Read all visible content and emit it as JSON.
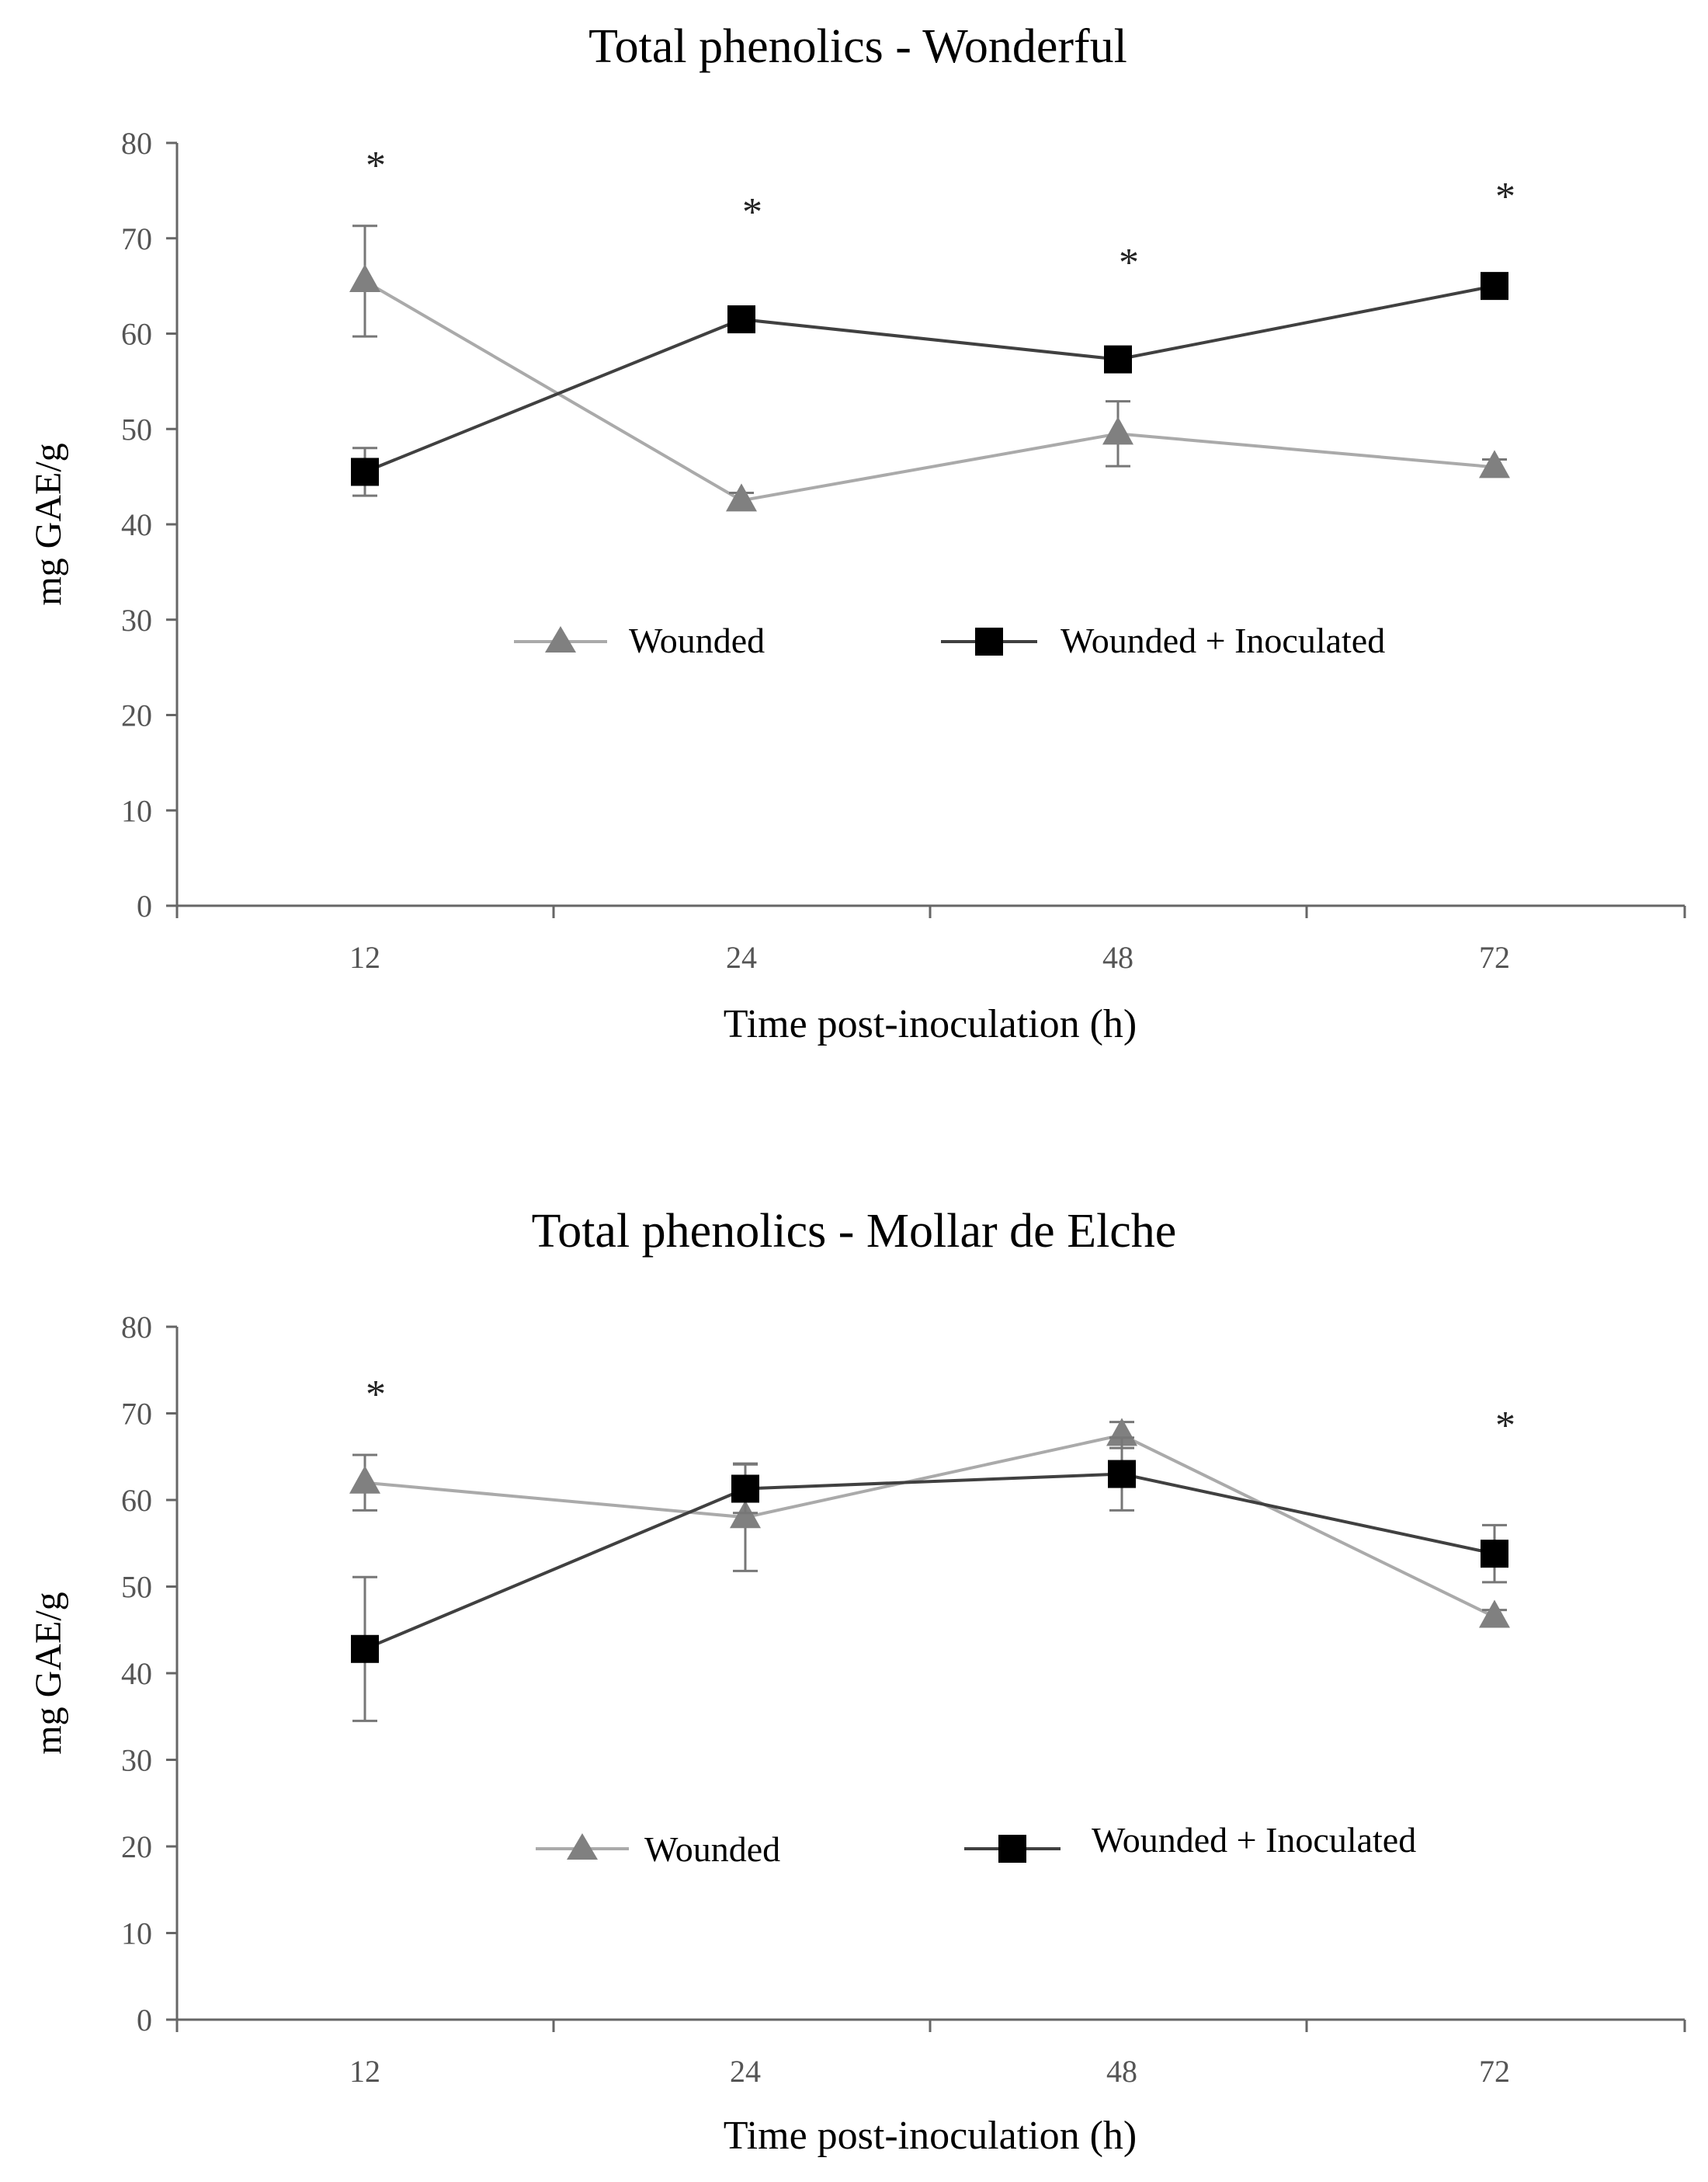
{
  "chart_data": [
    {
      "type": "line",
      "title": "Total phenolics - Wonderful",
      "xlabel": "Time post-inoculation (h)",
      "ylabel": "mg GAE/g",
      "categories": [
        "12",
        "24",
        "48",
        "72"
      ],
      "ylim": [
        0,
        80
      ],
      "yticks": [
        "0",
        "10",
        "20",
        "30",
        "40",
        "50",
        "60",
        "70",
        "80"
      ],
      "legend_position": "center",
      "significance": [
        "*",
        "*",
        "*",
        "*"
      ],
      "series": [
        {
          "name": "Wounded",
          "marker": "triangle",
          "color": "#808080",
          "line_color": "#aaaaaa",
          "values": [
            65.5,
            42.5,
            49.5,
            46.0
          ],
          "errors": [
            5.8,
            0.8,
            3.4,
            0.8
          ]
        },
        {
          "name": "Wounded + Inoculated",
          "marker": "square",
          "color": "#000000",
          "line_color": "#404040",
          "values": [
            45.5,
            61.5,
            57.3,
            65.0
          ],
          "errors": [
            2.5,
            1.0,
            1.0,
            1.0
          ]
        }
      ]
    },
    {
      "type": "line",
      "title": "Total phenolics - Mollar de Elche",
      "xlabel": "Time post-inoculation (h)",
      "ylabel": "mg GAE/g",
      "categories": [
        "12",
        "24",
        "48",
        "72"
      ],
      "ylim": [
        0,
        80
      ],
      "yticks": [
        "0",
        "10",
        "20",
        "30",
        "40",
        "50",
        "60",
        "70",
        "80"
      ],
      "legend_position": "center",
      "significance": [
        "*",
        "",
        "",
        "*"
      ],
      "series": [
        {
          "name": "Wounded",
          "marker": "triangle",
          "color": "#808080",
          "line_color": "#aaaaaa",
          "values": [
            62.0,
            58.0,
            67.5,
            46.5
          ],
          "errors": [
            3.2,
            6.2,
            1.5,
            0.8
          ]
        },
        {
          "name": "Wounded + Inoculated",
          "marker": "square",
          "color": "#000000",
          "line_color": "#404040",
          "values": [
            42.8,
            61.3,
            63.0,
            53.8
          ],
          "errors": [
            8.3,
            2.8,
            4.2,
            3.3
          ]
        }
      ]
    }
  ]
}
